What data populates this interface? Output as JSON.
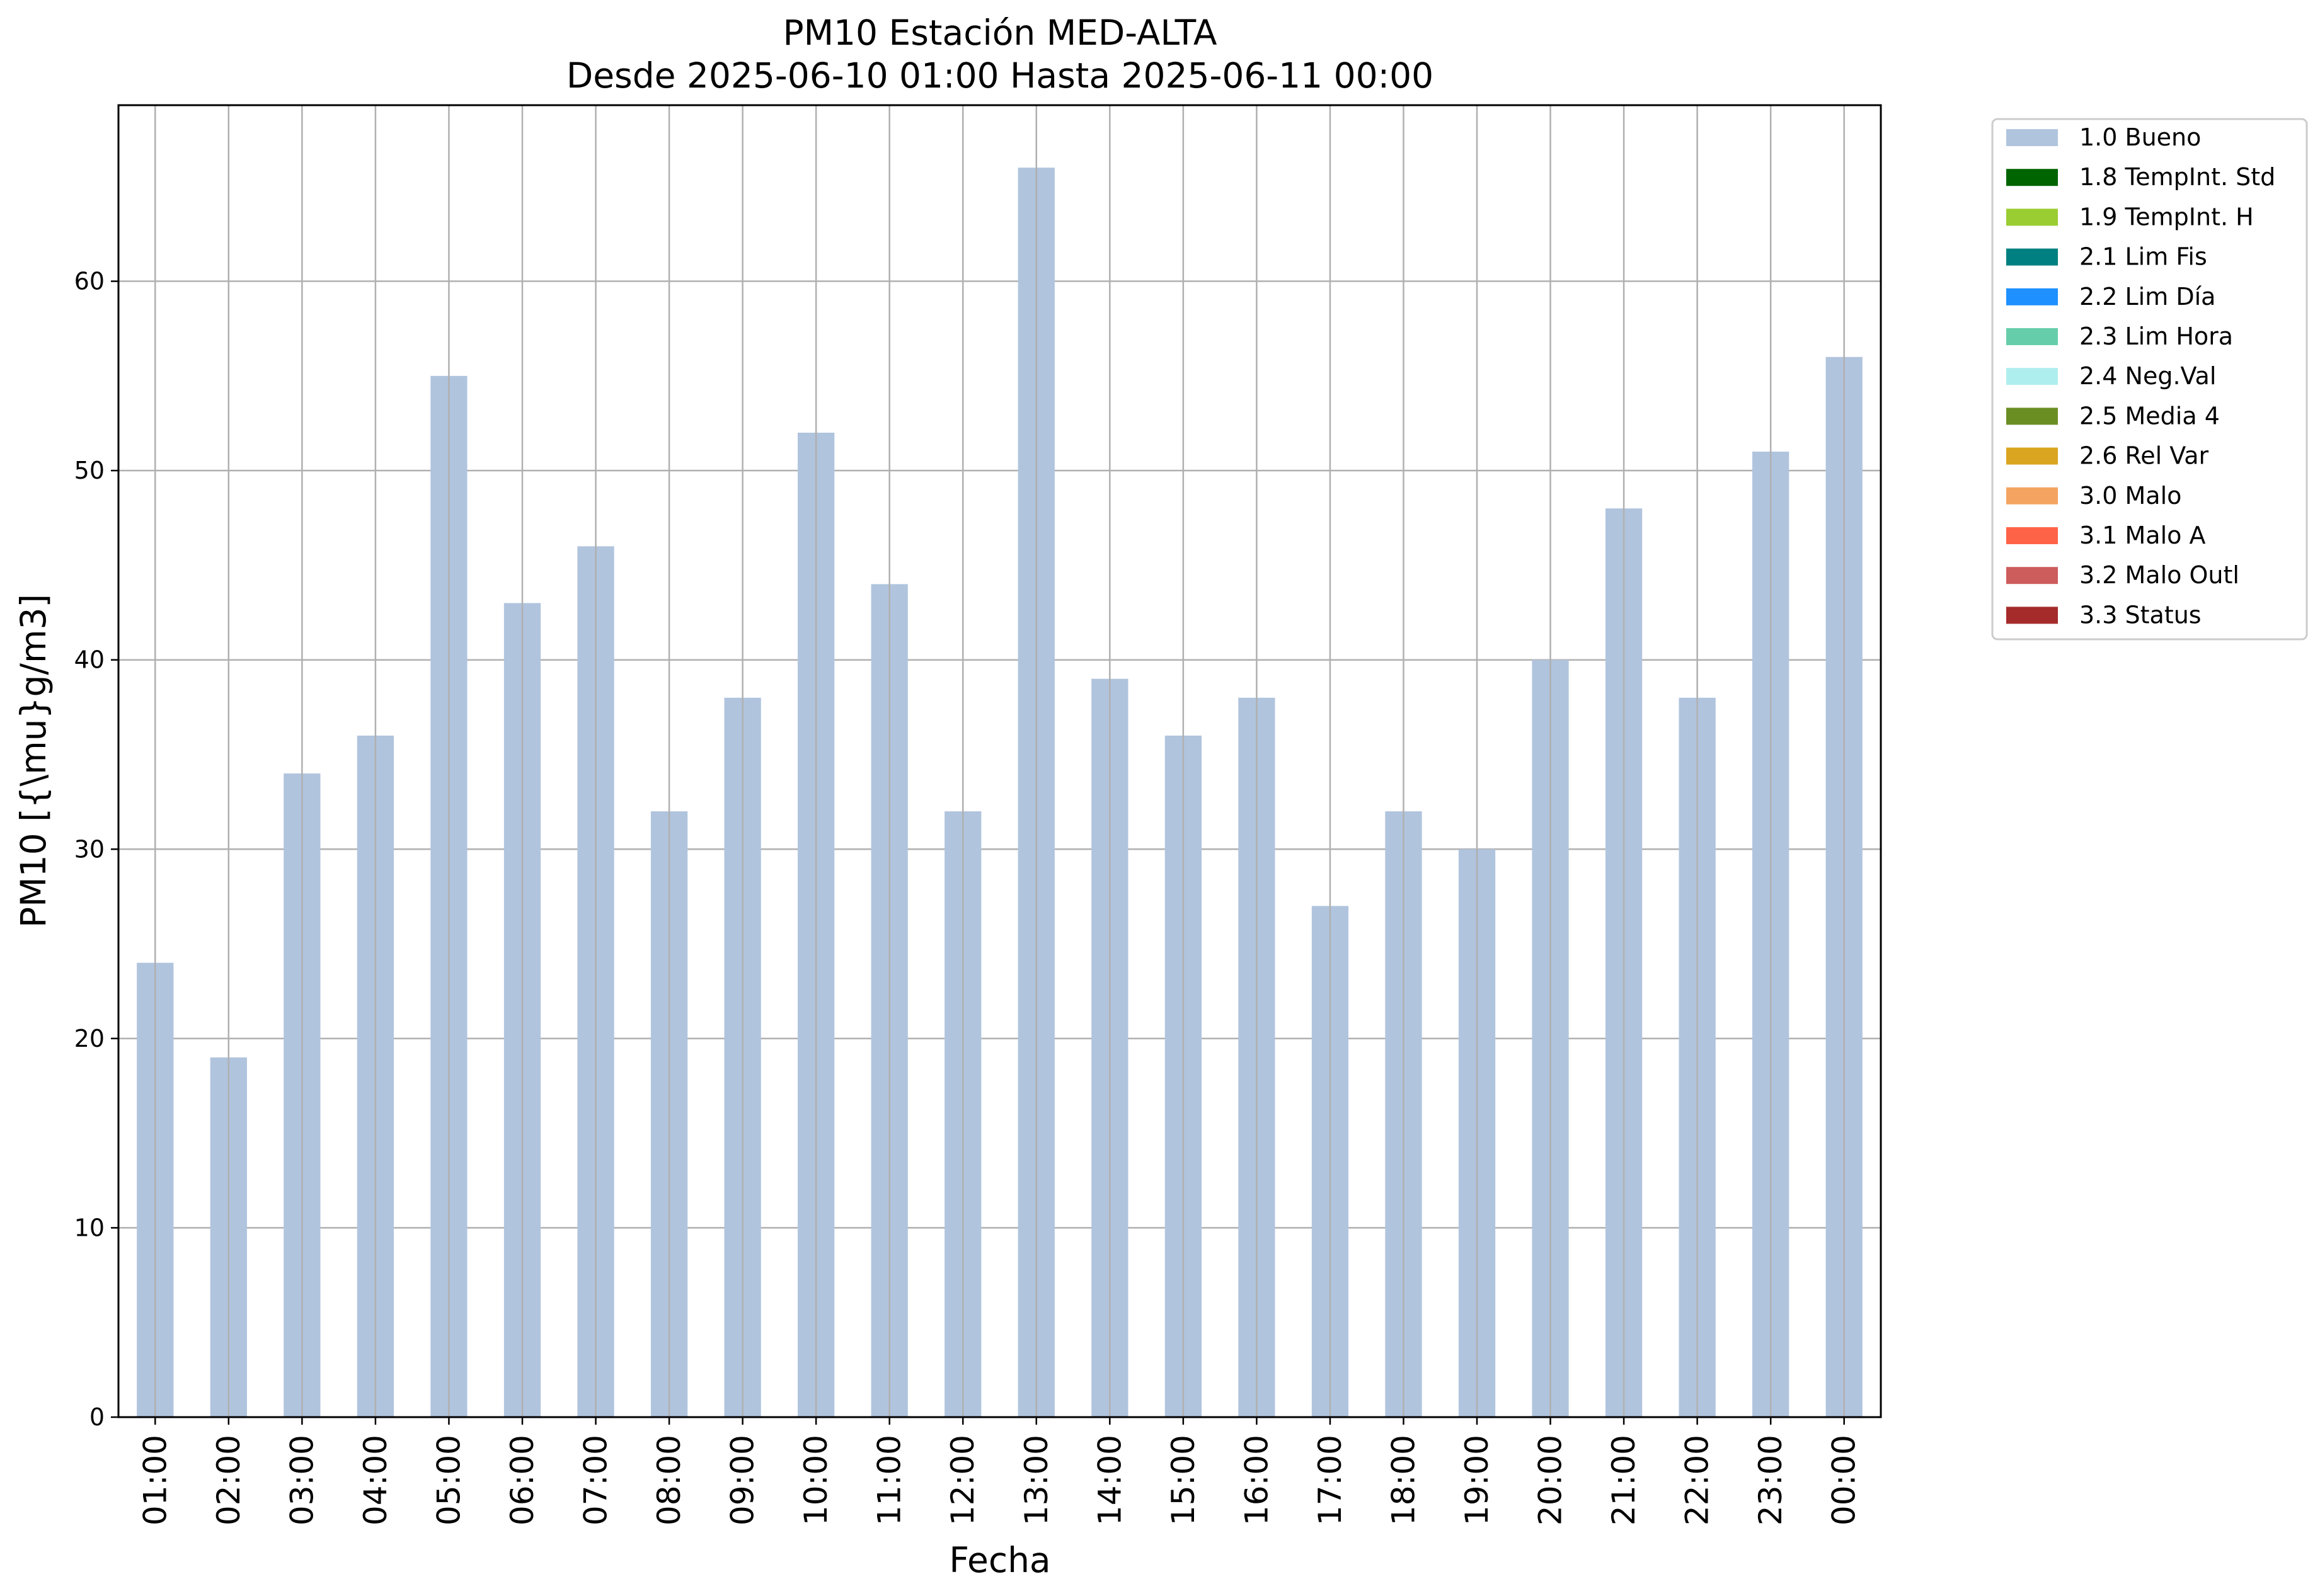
{
  "chart_data": {
    "type": "bar",
    "title": "PM10 Estación MED-ALTA",
    "subtitle": "Desde 2025-06-10 01:00 Hasta 2025-06-11 00:00",
    "xlabel": "Fecha",
    "ylabel": "PM10 [{\\mu}g/m3]",
    "ylim": [
      0,
      69.3
    ],
    "yticks": [
      0,
      10,
      20,
      30,
      40,
      50,
      60
    ],
    "grid": true,
    "legend_position": "outside-right",
    "categories": [
      "01:00",
      "02:00",
      "03:00",
      "04:00",
      "05:00",
      "06:00",
      "07:00",
      "08:00",
      "09:00",
      "10:00",
      "11:00",
      "12:00",
      "13:00",
      "14:00",
      "15:00",
      "16:00",
      "17:00",
      "18:00",
      "19:00",
      "20:00",
      "21:00",
      "22:00",
      "23:00",
      "00:00"
    ],
    "series": [
      {
        "name": "1.0 Bueno",
        "color": "#b0c4de",
        "values": [
          24,
          19,
          34,
          36,
          55,
          43,
          46,
          32,
          38,
          52,
          44,
          32,
          66,
          39,
          36,
          38,
          27,
          32,
          30,
          40,
          48,
          38,
          51,
          56
        ]
      }
    ],
    "legend": [
      {
        "label": "1.0 Bueno",
        "color": "#b0c4de"
      },
      {
        "label": "1.8 TempInt. Std",
        "color": "#006400"
      },
      {
        "label": "1.9 TempInt. H",
        "color": "#9acd32"
      },
      {
        "label": "2.1 Lim Fis",
        "color": "#008080"
      },
      {
        "label": "2.2 Lim Día",
        "color": "#1e90ff"
      },
      {
        "label": "2.3 Lim Hora",
        "color": "#66cdaa"
      },
      {
        "label": "2.4 Neg.Val",
        "color": "#afeeee"
      },
      {
        "label": "2.5 Media 4",
        "color": "#6b8e23"
      },
      {
        "label": "2.6 Rel Var",
        "color": "#daa520"
      },
      {
        "label": "3.0 Malo",
        "color": "#f4a460"
      },
      {
        "label": "3.1 Malo A",
        "color": "#ff6347"
      },
      {
        "label": "3.2 Malo Outl",
        "color": "#cd5c5c"
      },
      {
        "label": "3.3 Status",
        "color": "#a52a2a"
      }
    ]
  }
}
